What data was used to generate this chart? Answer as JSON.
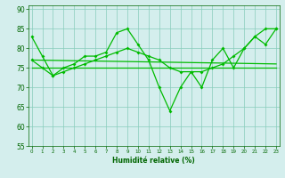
{
  "xlabel": "Humidité relative (%)",
  "xlim": [
    0,
    23
  ],
  "ylim": [
    55,
    91
  ],
  "yticks": [
    55,
    60,
    65,
    70,
    75,
    80,
    85,
    90
  ],
  "xticks": [
    0,
    1,
    2,
    3,
    4,
    5,
    6,
    7,
    8,
    9,
    10,
    11,
    12,
    13,
    14,
    15,
    16,
    17,
    18,
    19,
    20,
    21,
    22,
    23
  ],
  "background_color": "#d4eeed",
  "grid_color": "#88ccbb",
  "line_color": "#00bb00",
  "line1_x": [
    0,
    1,
    2,
    3,
    4,
    5,
    6,
    7,
    8,
    9,
    10,
    11,
    12,
    13,
    14,
    15,
    16,
    17,
    18,
    19,
    20,
    21,
    22,
    23
  ],
  "line1_y": [
    83,
    78,
    73,
    75,
    76,
    78,
    78,
    79,
    84,
    85,
    81,
    77,
    70,
    64,
    70,
    74,
    70,
    77,
    80,
    75,
    80,
    83,
    81,
    85
  ],
  "line2_x": [
    0,
    1,
    2,
    3,
    4,
    5,
    6,
    7,
    8,
    9,
    10,
    11,
    12,
    13,
    14,
    15,
    16,
    17,
    18,
    19,
    20,
    21,
    22,
    23
  ],
  "line2_y": [
    77,
    75,
    73,
    74,
    75,
    76,
    77,
    78,
    79,
    80,
    79,
    78,
    77,
    75,
    74,
    74,
    74,
    75,
    76,
    78,
    80,
    83,
    85,
    85
  ],
  "line3_x": [
    0,
    23
  ],
  "line3_y": [
    77,
    76
  ],
  "line4_x": [
    0,
    23
  ],
  "line4_y": [
    75,
    75
  ]
}
